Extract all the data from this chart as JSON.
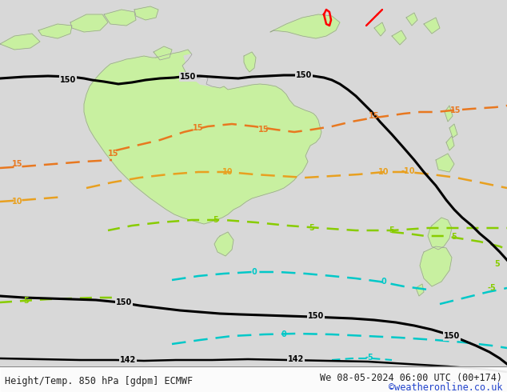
{
  "title_left": "Height/Temp. 850 hPa [gdpm] ECMWF",
  "title_right": "We 08-05-2024 06:00 UTC (00+174)",
  "credit": "©weatheronline.co.uk",
  "background_color": "#d8d8d8",
  "land_color": "#c8f0a0",
  "land_border_color": "#999999",
  "bottom_text_color": "#222222",
  "credit_color": "#2244cc",
  "fig_width": 6.34,
  "fig_height": 4.9,
  "dpi": 100
}
